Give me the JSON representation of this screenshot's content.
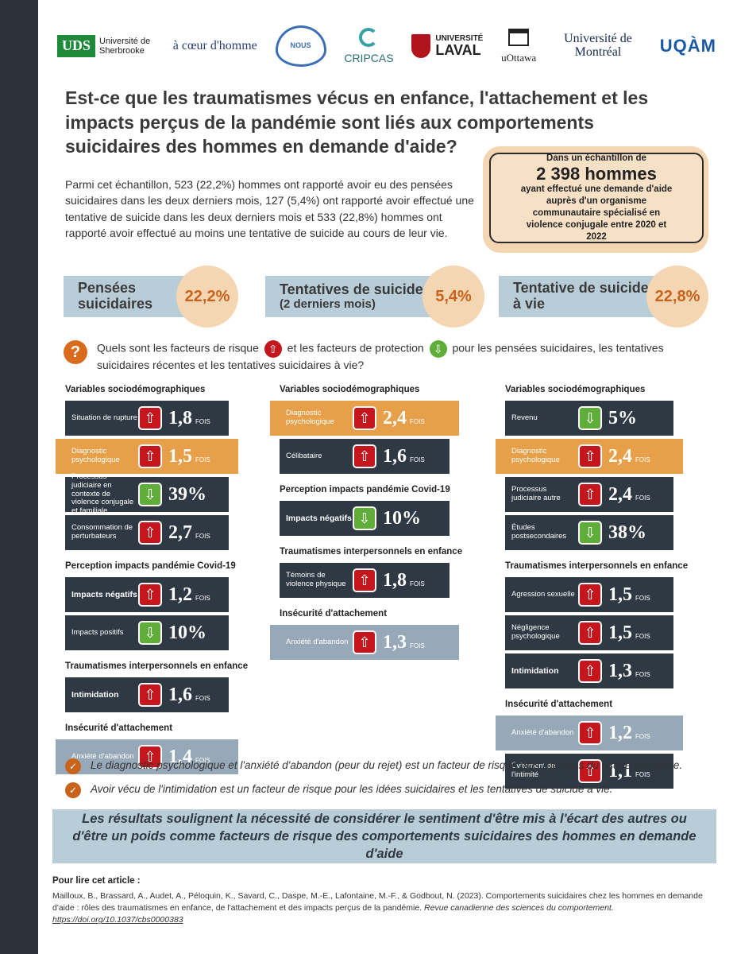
{
  "logos": {
    "uds_mark": "UDS",
    "uds_name": "Université de Sherbrooke",
    "coeur": "à cœur d'homme",
    "nous": "NOUS",
    "cripcas": "CRIPCAS",
    "laval_top": "UNIVERSITÉ",
    "laval_bottom": "LAVAL",
    "uottawa": "uOttawa",
    "udem": "Université de Montréal",
    "uqam": "UQÀM"
  },
  "title": "Est-ce que les traumatismes vécus en enfance, l'attachement et les impacts perçus de la pandémie sont liés aux comportements suicidaires des hommes en demande d'aide?",
  "intro": "Parmi cet échantillon, 523 (22,2%) hommes ont rapporté avoir eu des pensées suicidaires dans les deux derniers mois, 127 (5,4%) ont rapporté avoir effectué une tentative de suicide dans les deux derniers mois et 533 (22,8%) hommes ont rapporté avoir effectué au moins une tentative de suicide au cours de leur vie.",
  "sample": {
    "line1": "Dans un échantillon de",
    "big": "2 398 hommes",
    "line2": "ayant effectué une demande d'aide auprès d'un organisme communautaire spécialisé en violence conjugale entre 2020 et 2022"
  },
  "stats": [
    {
      "label": "Pensées",
      "sub": "suicidaires",
      "value": "22,2%"
    },
    {
      "label": "Tentatives de suicide",
      "sub": "(2 derniers mois)",
      "value": "5,4%"
    },
    {
      "label": "Tentative de suicide",
      "sub": "à vie",
      "value": "22,8%"
    }
  ],
  "question": {
    "part1": "Quels sont les facteurs de risque",
    "part2": "et les facteurs de protection",
    "part3": "pour les pensées suicidaires, les tentatives suicidaires récentes et les tentatives suicidaires à vie?"
  },
  "unit": "FOIS",
  "columns": [
    {
      "sections": [
        {
          "title": "Variables sociodémographiques",
          "rows": [
            {
              "label": "Situation de rupture",
              "dir": "up",
              "value": "1,8",
              "unit": true,
              "style": "dark"
            },
            {
              "label": "Diagnostic psychologique",
              "dir": "up",
              "value": "1,5",
              "unit": true,
              "style": "orange"
            },
            {
              "label": "Processus judiciaire en contexte de violence conjugale et familiale",
              "dir": "down",
              "value": "39%",
              "unit": false,
              "style": "dark"
            },
            {
              "label": "Consommation de perturbateurs",
              "dir": "up",
              "value": "2,7",
              "unit": true,
              "style": "dark"
            }
          ]
        },
        {
          "title": "Perception impacts pandémie Covid-19",
          "rows": [
            {
              "label": "Impacts négatifs",
              "dir": "up",
              "value": "1,2",
              "unit": true,
              "style": "dark",
              "bold": true
            },
            {
              "label": "Impacts positifs",
              "dir": "down",
              "value": "10%",
              "unit": false,
              "style": "dark"
            }
          ]
        },
        {
          "title": "Traumatismes interpersonnels en enfance",
          "rows": [
            {
              "label": "Intimidation",
              "dir": "up",
              "value": "1,6",
              "unit": true,
              "style": "dark",
              "bold": true
            }
          ]
        },
        {
          "title": "Insécurité d'attachement",
          "rows": [
            {
              "label": "Anxiété d'abandon",
              "dir": "up",
              "value": "1,4",
              "unit": true,
              "style": "light"
            }
          ]
        }
      ]
    },
    {
      "sections": [
        {
          "title": "Variables sociodémographiques",
          "rows": [
            {
              "label": "Diagnostic psychologique",
              "dir": "up",
              "value": "2,4",
              "unit": true,
              "style": "orange"
            },
            {
              "label": "Célibataire",
              "dir": "up",
              "value": "1,6",
              "unit": true,
              "style": "dark"
            }
          ]
        },
        {
          "title": "Perception impacts pandémie Covid-19",
          "rows": [
            {
              "label": "Impacts négatifs",
              "dir": "down",
              "value": "10%",
              "unit": false,
              "style": "dark",
              "bold": true
            }
          ]
        },
        {
          "title": "Traumatismes interpersonnels en enfance",
          "rows": [
            {
              "label": "Témoins de violence physique",
              "dir": "up",
              "value": "1,8",
              "unit": true,
              "style": "dark"
            }
          ]
        },
        {
          "title": "Insécurité d'attachement",
          "rows": [
            {
              "label": "Anxiété d'abandon",
              "dir": "up",
              "value": "1,3",
              "unit": true,
              "style": "light"
            }
          ]
        }
      ]
    },
    {
      "sections": [
        {
          "title": "Variables sociodémographiques",
          "rows": [
            {
              "label": "Revenu",
              "dir": "down",
              "value": "5%",
              "unit": false,
              "style": "dark"
            },
            {
              "label": "Diagnostic psychologique",
              "dir": "up",
              "value": "2,4",
              "unit": true,
              "style": "orange"
            },
            {
              "label": "Processus judiciaire autre",
              "dir": "up",
              "value": "2,4",
              "unit": true,
              "style": "dark"
            },
            {
              "label": "Études postsecondaires",
              "dir": "down",
              "value": "38%",
              "unit": false,
              "style": "dark"
            }
          ]
        },
        {
          "title": "Traumatismes interpersonnels en enfance",
          "rows": [
            {
              "label": "Agression sexuelle",
              "dir": "up",
              "value": "1,5",
              "unit": true,
              "style": "dark"
            },
            {
              "label": "Négligence psychologique",
              "dir": "up",
              "value": "1,5",
              "unit": true,
              "style": "dark"
            },
            {
              "label": "Intimidation",
              "dir": "up",
              "value": "1,3",
              "unit": true,
              "style": "dark",
              "bold": true
            }
          ]
        },
        {
          "title": "Insécurité d'attachement",
          "rows": [
            {
              "label": "Anxiété d'abandon",
              "dir": "up",
              "value": "1,2",
              "unit": true,
              "style": "light"
            },
            {
              "label": "Évitement de l'intimité",
              "dir": "up",
              "value": "1,1",
              "unit": true,
              "style": "dark"
            }
          ]
        }
      ]
    }
  ],
  "conclusions": [
    "Le diagnostic psychologique et l'anxiété d'abandon (peur du rejet) est un facteur de risque plus robustes du risque suicidaire.",
    "Avoir vécu de l'intimidation est un facteur de risque pour les idées suicidaires et les tentatives de suicide à vie."
  ],
  "banner": "Les résultats soulignent la nécessité de considérer le sentiment d'être mis à l'écart des autres ou d'être un poids comme facteurs de risque des comportements suicidaires des hommes en demande d'aide",
  "reference": {
    "title": "Pour lire cet article :",
    "text": "Mailloux, B., Brassard, A., Audet, A., Péloquin, K., Savard, C., Daspe, M.-E., Lafontaine, M.-F., & Godbout, N. (2023). Comportements suicidaires chez les hommes en demande d'aide : rôles des traumatismes en enfance, de l'attachement et des impacts perçus de la pandémie.",
    "journal": "Revue canadienne des sciences du comportement.",
    "doi": "https://doi.org/10.1037/cbs0000383"
  },
  "colors": {
    "dark": "#2e3944",
    "orange": "#e7a049",
    "light": "#97a9b8",
    "risk": "#c4161c",
    "protect": "#5fae3a",
    "accent": "#c9631c"
  },
  "icons": {
    "risk": "arrow-up-icon",
    "protection": "arrow-down-icon",
    "question": "question-icon",
    "check": "check-icon"
  }
}
